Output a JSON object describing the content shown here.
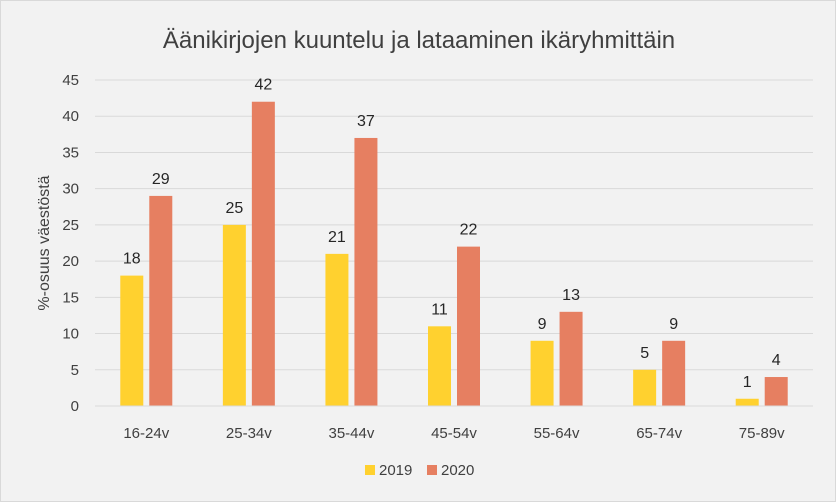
{
  "chart_data": {
    "type": "bar",
    "title": "Äänikirjojen kuuntelu ja lataaminen ikäryhmittäin",
    "xlabel": "",
    "ylabel": "%-osuus väestöstä",
    "categories": [
      "16-24v",
      "25-34v",
      "35-44v",
      "45-54v",
      "55-64v",
      "65-74v",
      "75-89v"
    ],
    "series": [
      {
        "name": "2019",
        "values": [
          18,
          25,
          21,
          11,
          9,
          5,
          1
        ],
        "color": "#ffd12f"
      },
      {
        "name": "2020",
        "values": [
          29,
          42,
          37,
          22,
          13,
          9,
          4
        ],
        "color": "#e67f61"
      }
    ],
    "ylim": [
      0,
      45
    ],
    "yticks": [
      0,
      5,
      10,
      15,
      20,
      25,
      30,
      35,
      40,
      45
    ],
    "grid": true,
    "legend": "bottom",
    "data_labels": true
  }
}
